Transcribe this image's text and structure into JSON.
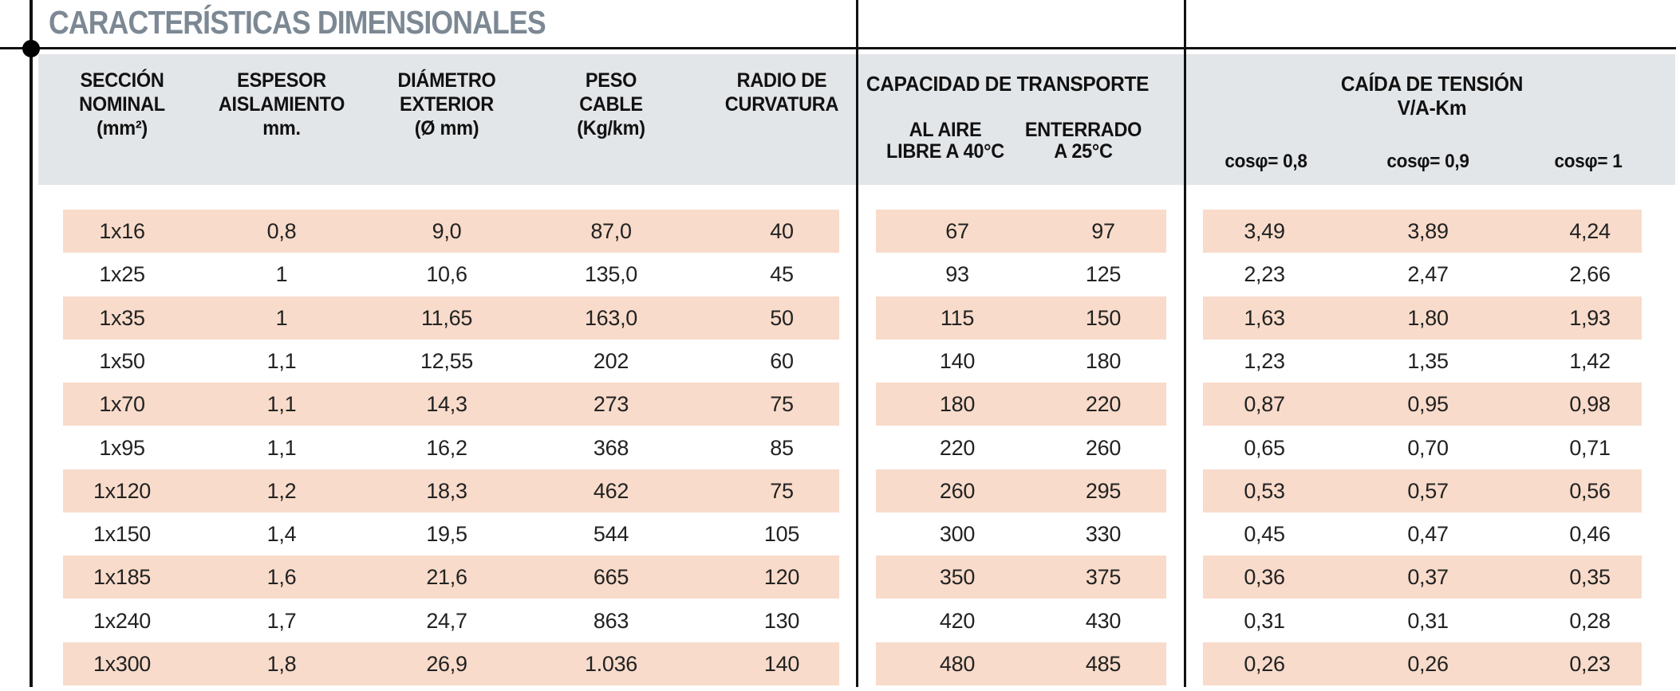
{
  "title": "CARACTERÍSTICAS DIMENSIONALES",
  "colors": {
    "title_gray": "#7c8893",
    "header_band": "#e3e6e9",
    "stripe_pink": "#f8dbca",
    "line_black": "#111111"
  },
  "table": {
    "headers": [
      "SECCIÓN\nNOMINAL\n(mm²)",
      "ESPESOR\nAISLAMIENTO\nmm.",
      "DIÁMETRO\nEXTERIOR\n(Ø mm)",
      "PESO\nCABLE\n(Kg/km)",
      "RADIO DE\nCURVATURA"
    ],
    "transport_group": {
      "title": "CAPACIDAD DE TRANSPORTE",
      "sub_headers": [
        "AL AIRE\nLIBRE A 40°C",
        "ENTERRADO\nA 25°C"
      ]
    },
    "voltage_drop_group": {
      "title": "CAÍDA DE TENSIÓN\nV/A-Km",
      "sub_headers": [
        "cosφ= 0,8",
        "cosφ= 0,9",
        "cosφ= 1"
      ]
    },
    "rows": [
      [
        "1x16",
        "0,8",
        "9,0",
        "87,0",
        "40",
        "67",
        "97",
        "3,49",
        "3,89",
        "4,24"
      ],
      [
        "1x25",
        "1",
        "10,6",
        "135,0",
        "45",
        "93",
        "125",
        "2,23",
        "2,47",
        "2,66"
      ],
      [
        "1x35",
        "1",
        "11,65",
        "163,0",
        "50",
        "115",
        "150",
        "1,63",
        "1,80",
        "1,93"
      ],
      [
        "1x50",
        "1,1",
        "12,55",
        "202",
        "60",
        "140",
        "180",
        "1,23",
        "1,35",
        "1,42"
      ],
      [
        "1x70",
        "1,1",
        "14,3",
        "273",
        "75",
        "180",
        "220",
        "0,87",
        "0,95",
        "0,98"
      ],
      [
        "1x95",
        "1,1",
        "16,2",
        "368",
        "85",
        "220",
        "260",
        "0,65",
        "0,70",
        "0,71"
      ],
      [
        "1x120",
        "1,2",
        "18,3",
        "462",
        "75",
        "260",
        "295",
        "0,53",
        "0,57",
        "0,56"
      ],
      [
        "1x150",
        "1,4",
        "19,5",
        "544",
        "105",
        "300",
        "330",
        "0,45",
        "0,47",
        "0,46"
      ],
      [
        "1x185",
        "1,6",
        "21,6",
        "665",
        "120",
        "350",
        "375",
        "0,36",
        "0,37",
        "0,35"
      ],
      [
        "1x240",
        "1,7",
        "24,7",
        "863",
        "130",
        "420",
        "430",
        "0,31",
        "0,31",
        "0,28"
      ],
      [
        "1x300",
        "1,8",
        "26,9",
        "1.036",
        "140",
        "480",
        "485",
        "0,26",
        "0,26",
        "0,23"
      ]
    ]
  }
}
